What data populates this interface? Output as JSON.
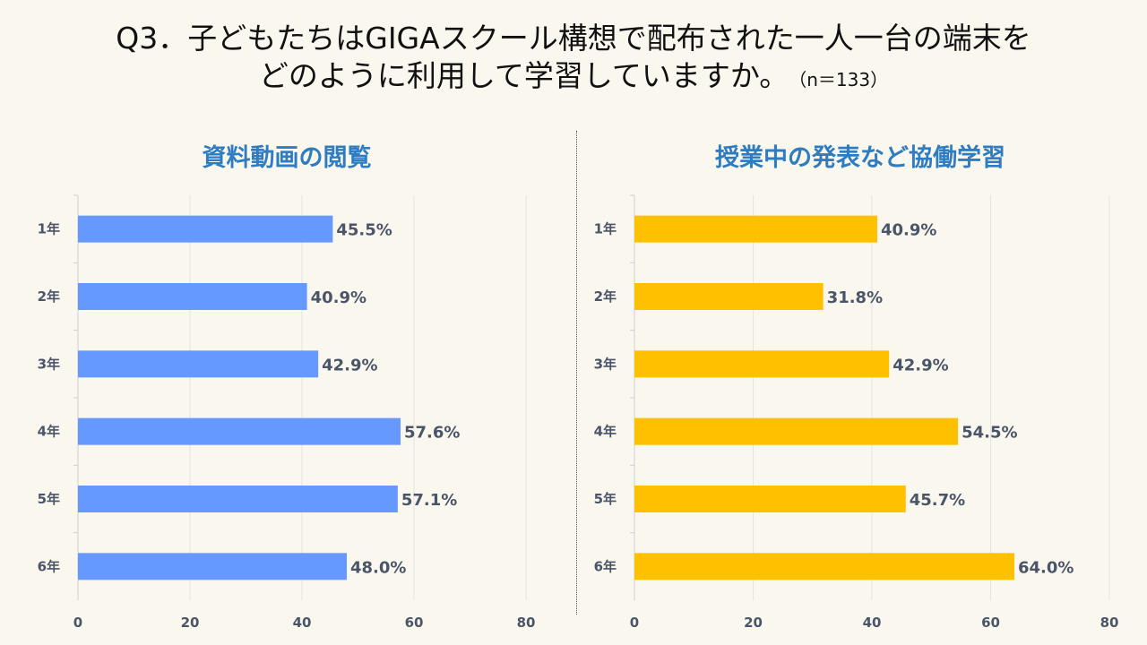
{
  "title": {
    "line1": "Q3．子どもたちはGIGAスクール構想で配布された一人一台の端末を",
    "line2": "どのように利用して学習していますか。",
    "n_note": "（n＝133）"
  },
  "chart_data": [
    {
      "type": "bar",
      "orientation": "horizontal",
      "title": "資料動画の閲覧",
      "categories": [
        "1年",
        "2年",
        "3年",
        "4年",
        "5年",
        "6年"
      ],
      "values": [
        45.5,
        40.9,
        42.9,
        57.6,
        57.1,
        48.0
      ],
      "data_labels": [
        "45.5%",
        "40.9%",
        "42.9%",
        "57.6%",
        "57.1%",
        "48.0%"
      ],
      "xlim": [
        0,
        80
      ],
      "xticks": [
        0,
        20,
        40,
        60,
        80
      ],
      "grid": true,
      "color": "#6699ff"
    },
    {
      "type": "bar",
      "orientation": "horizontal",
      "title": "授業中の発表など協働学習",
      "categories": [
        "1年",
        "2年",
        "3年",
        "4年",
        "5年",
        "6年"
      ],
      "values": [
        40.9,
        31.8,
        42.9,
        54.5,
        45.7,
        64.0
      ],
      "data_labels": [
        "40.9%",
        "31.8%",
        "42.9%",
        "54.5%",
        "45.7%",
        "64.0%"
      ],
      "xlim": [
        0,
        80
      ],
      "xticks": [
        0,
        20,
        40,
        60,
        80
      ],
      "grid": true,
      "color": "#ffc000"
    }
  ]
}
